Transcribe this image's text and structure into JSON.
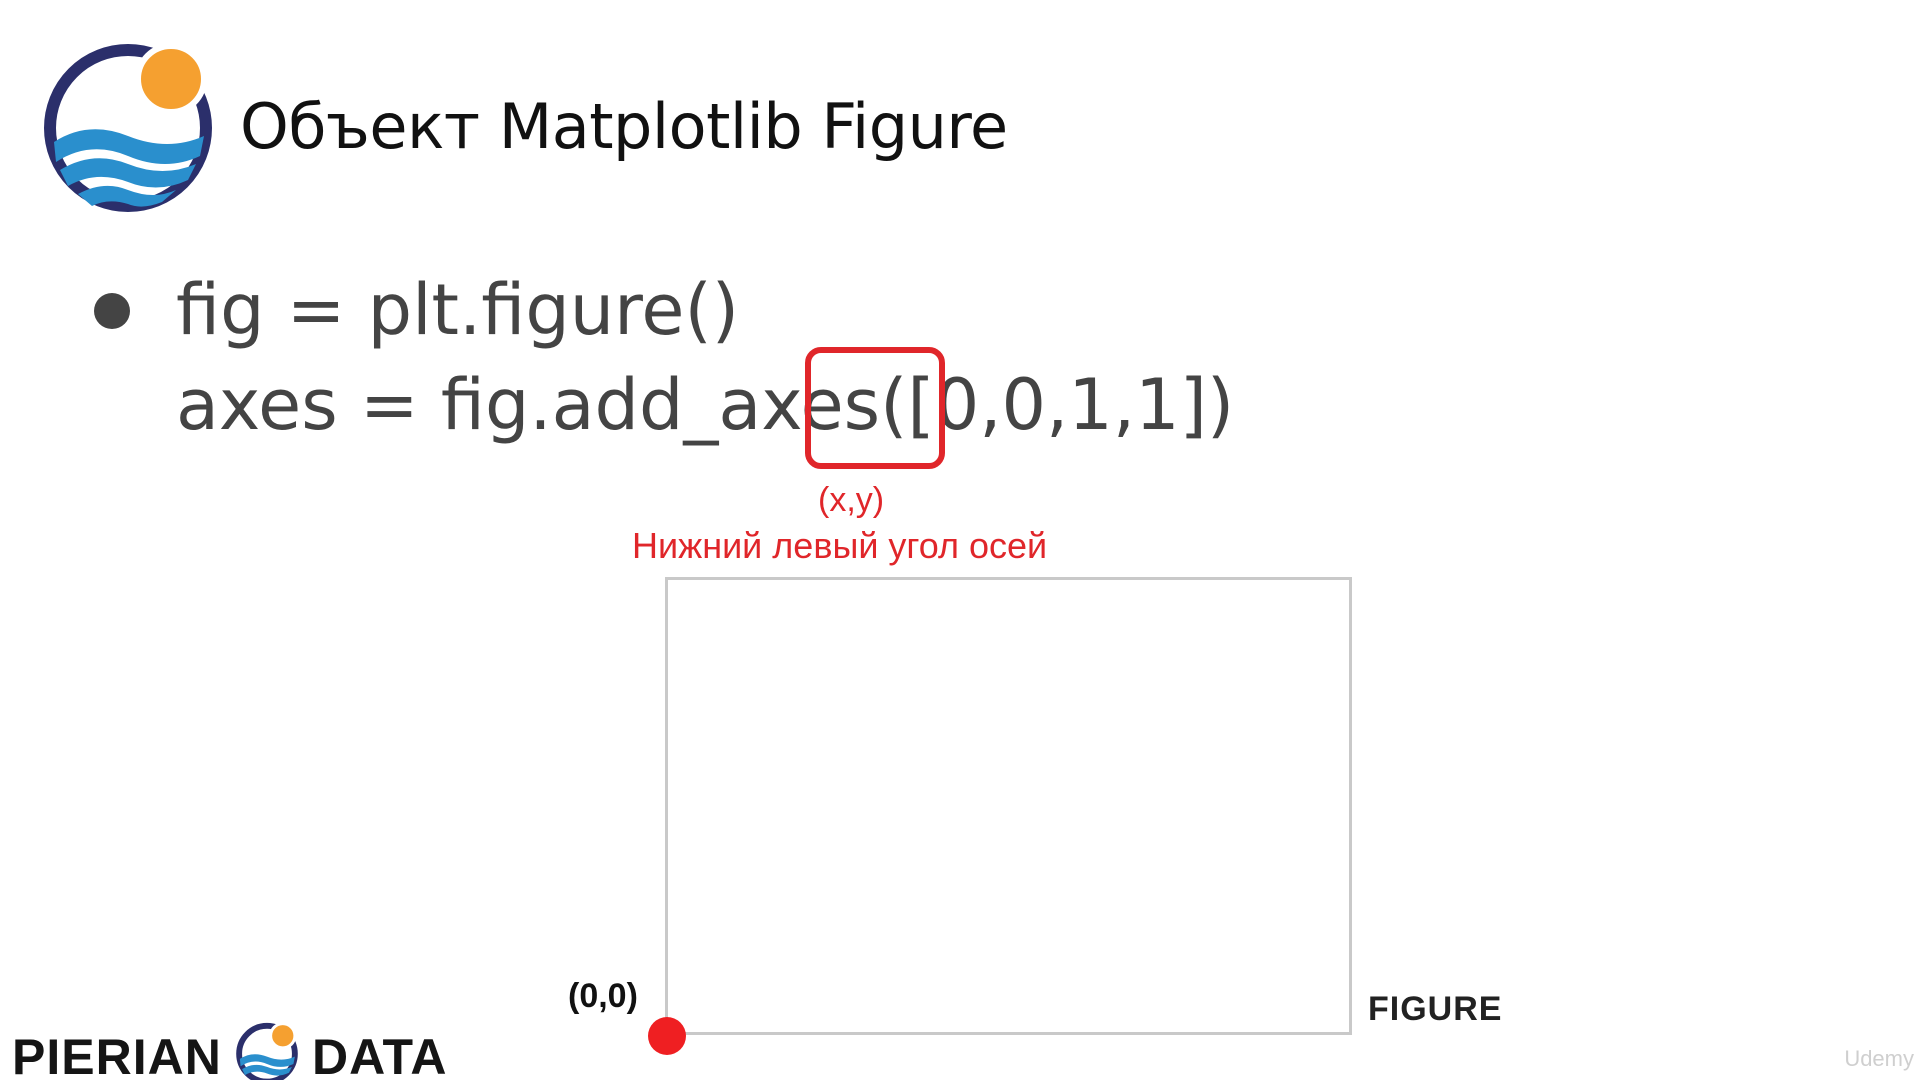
{
  "slide": {
    "title": "Объект Matplotlib Figure"
  },
  "bullet": {
    "line1": "fig = plt.figure()",
    "line2": "axes = fig.add_axes([0,0,1,1])"
  },
  "annotation": {
    "xy_label": "(x,y)",
    "corner_label": "Нижний левый угол осей"
  },
  "diagram": {
    "origin_label": "(0,0)",
    "figure_label": "FIGURE"
  },
  "brand": {
    "left_word": "PIERIAN",
    "right_word": "DATA"
  },
  "watermark": {
    "text": "Udemy"
  },
  "colors": {
    "accent_red": "#e0262a",
    "logo_navy": "#2b2f6b",
    "logo_orange": "#f5a030",
    "logo_blue": "#2a8fcd",
    "text_gray": "#444444",
    "box_gray": "#c9c9c9"
  },
  "icons": {
    "main_logo": "pierian-data-logo-icon",
    "brand_logo": "pierian-data-logo-icon"
  }
}
